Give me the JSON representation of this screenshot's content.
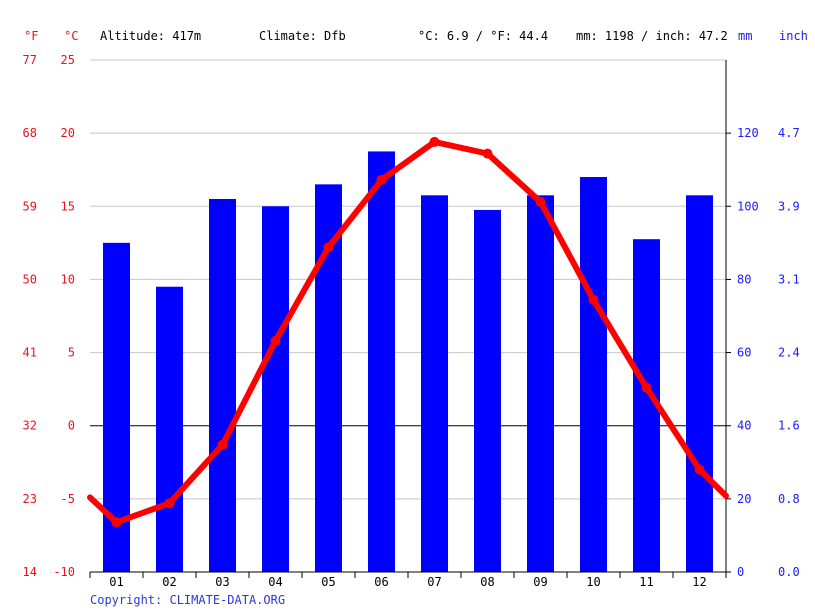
{
  "header": {
    "unit_f": "°F",
    "unit_c": "°C",
    "altitude": "Altitude: 417m",
    "climate": "Climate: Dfb",
    "temp_avg": "°C: 6.9 / °F: 44.4",
    "precip_total": "mm: 1198 / inch: 47.2",
    "unit_mm": "mm",
    "unit_inch": "inch"
  },
  "footer": {
    "copyright": "Copyright: CLIMATE-DATA.ORG"
  },
  "colors": {
    "temperature": "#ff0000",
    "precipitation": "#0000ff",
    "axis_temp": "#e8141c",
    "axis_precip": "#1a1aff",
    "grid": "#c8c8c8"
  },
  "chart_data": {
    "type": "bar+line",
    "categories": [
      "01",
      "02",
      "03",
      "04",
      "05",
      "06",
      "07",
      "08",
      "09",
      "10",
      "11",
      "12"
    ],
    "series": [
      {
        "kind": "bar",
        "axis": "right",
        "unit": "mm",
        "values": [
          90,
          78,
          102,
          100,
          106,
          115,
          103,
          99,
          103,
          108,
          91,
          103
        ]
      },
      {
        "kind": "line",
        "axis": "left",
        "unit": "°C",
        "values": [
          -6.6,
          -5.3,
          -1.3,
          5.8,
          12.2,
          16.8,
          19.4,
          18.6,
          15.3,
          8.6,
          2.6,
          -3.0
        ]
      }
    ],
    "line_edges": {
      "start": -4.9,
      "end": -4.8
    },
    "y_left_c": {
      "range": [
        -10,
        25
      ],
      "ticks": [
        25,
        20,
        15,
        10,
        5,
        0,
        -5,
        -10
      ]
    },
    "y_left_f": {
      "ticks": [
        77,
        68,
        59,
        50,
        41,
        32,
        23,
        14
      ]
    },
    "y_right_mm": {
      "range": [
        0,
        140
      ],
      "ticks": [
        120,
        100,
        80,
        60,
        40,
        20,
        0
      ]
    },
    "y_right_inch": {
      "ticks": [
        "4.7",
        "3.9",
        "3.1",
        "2.4",
        "1.6",
        "0.8",
        "0.0"
      ]
    },
    "grid": true
  }
}
